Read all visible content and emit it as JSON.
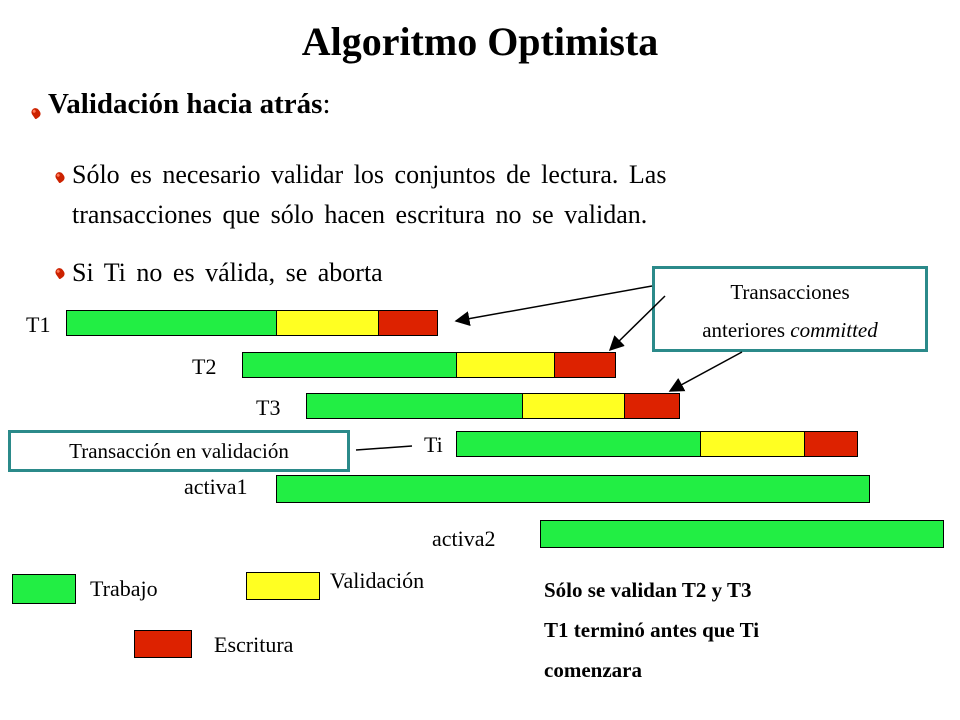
{
  "title": "Algoritmo Optimista",
  "heading": {
    "text": "Validación hacia atrás",
    "colon": ":"
  },
  "bullets": [
    "Sólo es necesario validar los conjuntos de lectura. Las",
    "transacciones que sólo hacen escritura no se validan.",
    "Si Ti no es válida, se aborta"
  ],
  "transactions": [
    {
      "name": "T1"
    },
    {
      "name": "T2"
    },
    {
      "name": "T3"
    },
    {
      "name": "Ti"
    },
    {
      "name": "activa1"
    },
    {
      "name": "activa2"
    }
  ],
  "callout_committed": {
    "line1": "Transacciones",
    "line2_a": "anteriores ",
    "line2_b": "committed"
  },
  "callout_validating": "Transacción en validación",
  "legend": {
    "work": "Trabajo",
    "validation": "Validación",
    "write": "Escritura"
  },
  "note": [
    "Sólo se validan T2 y T3",
    "T1 terminó antes que Ti",
    "comenzara"
  ],
  "colors": {
    "work": "#22ee44",
    "validation": "#ffff22",
    "write": "#dd2200",
    "callout_border": "#2b8a8a"
  }
}
